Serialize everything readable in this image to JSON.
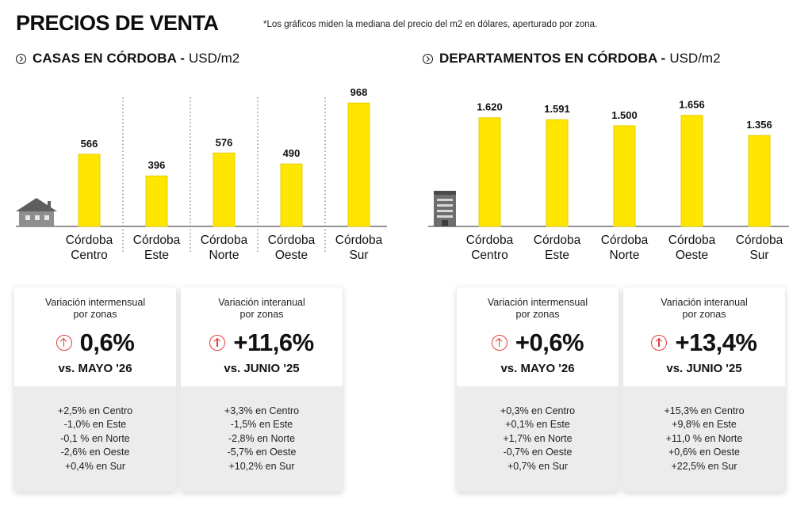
{
  "header": {
    "title": "PRECIOS DE VENTA",
    "note": "*Los gráficos miden la mediana del precio del m2 en dólares, aperturado por zona."
  },
  "colors": {
    "bar": "#ffe600",
    "bar_stroke": "#e6cf00",
    "arrow": "#e0403a",
    "card_bottom": "#ececec"
  },
  "sections": [
    {
      "heading_bold": "CASAS EN CÓRDOBA -",
      "heading_unit": "USD/m2",
      "icon": "house-icon",
      "cards": [
        {
          "caption": [
            "Variación intermensual",
            "por zonas"
          ],
          "value": "0,6%",
          "compare": "vs. MAYO '26",
          "details": [
            "+2,5% en Centro",
            "-1,0% en Este",
            "-0,1 % en Norte",
            "-2,6% en Oeste",
            "+0,4% en Sur"
          ]
        },
        {
          "caption": [
            "Variación interanual",
            "por zonas"
          ],
          "value": "+11,6%",
          "compare": "vs. JUNIO '25",
          "details": [
            "+3,3% en Centro",
            "-1,5% en Este",
            "-2,8% en Norte",
            "-5,7% en Oeste",
            "+10,2% en Sur"
          ]
        }
      ]
    },
    {
      "heading_bold": "DEPARTAMENTOS EN CÓRDOBA -",
      "heading_unit": "USD/m2",
      "icon": "building-icon",
      "cards": [
        {
          "caption": [
            "Variación intermensual",
            "por zonas"
          ],
          "value": "+0,6%",
          "compare": "vs. MAYO '26",
          "details": [
            "+0,3% en Centro",
            "+0,1% en Este",
            "+1,7% en Norte",
            "-0,7% en Oeste",
            "+0,7% en Sur"
          ]
        },
        {
          "caption": [
            "Variación interanual",
            "por zonas"
          ],
          "value": "+13,4%",
          "compare": "vs. JUNIO '25",
          "details": [
            "+15,3% en Centro",
            "+9,8% en Este",
            "+11,0 % en Norte",
            "+0,6% en Oeste",
            "+22,5% en Sur"
          ]
        }
      ]
    }
  ],
  "chart_data": [
    {
      "type": "bar",
      "title": "CASAS EN CÓRDOBA - USD/m2",
      "categories": [
        "Córdoba Centro",
        "Córdoba Este",
        "Córdoba Norte",
        "Córdoba Oeste",
        "Córdoba Sur"
      ],
      "category_lines": [
        [
          "Córdoba",
          "Centro"
        ],
        [
          "Córdoba",
          "Este"
        ],
        [
          "Córdoba",
          "Norte"
        ],
        [
          "Córdoba",
          "Oeste"
        ],
        [
          "Córdoba",
          "Sur"
        ]
      ],
      "values": [
        566,
        396,
        576,
        490,
        968
      ],
      "value_labels": [
        "566",
        "396",
        "576",
        "490",
        "968"
      ],
      "ylim": [
        0,
        1000
      ],
      "grid": false,
      "separators": "dotted vertical"
    },
    {
      "type": "bar",
      "title": "DEPARTAMENTOS EN CÓRDOBA - USD/m2",
      "categories": [
        "Córdoba Centro",
        "Córdoba Este",
        "Córdoba Norte",
        "Córdoba Oeste",
        "Córdoba Sur"
      ],
      "category_lines": [
        [
          "Córdoba",
          "Centro"
        ],
        [
          "Córdoba",
          "Este"
        ],
        [
          "Córdoba",
          "Norte"
        ],
        [
          "Córdoba",
          "Oeste"
        ],
        [
          "Córdoba",
          "Sur"
        ]
      ],
      "values": [
        1620,
        1591,
        1500,
        1656,
        1356
      ],
      "value_labels": [
        "1.620",
        "1.591",
        "1.500",
        "1.656",
        "1.356"
      ],
      "ylim": [
        0,
        1900
      ],
      "grid": false,
      "separators": "none"
    }
  ]
}
